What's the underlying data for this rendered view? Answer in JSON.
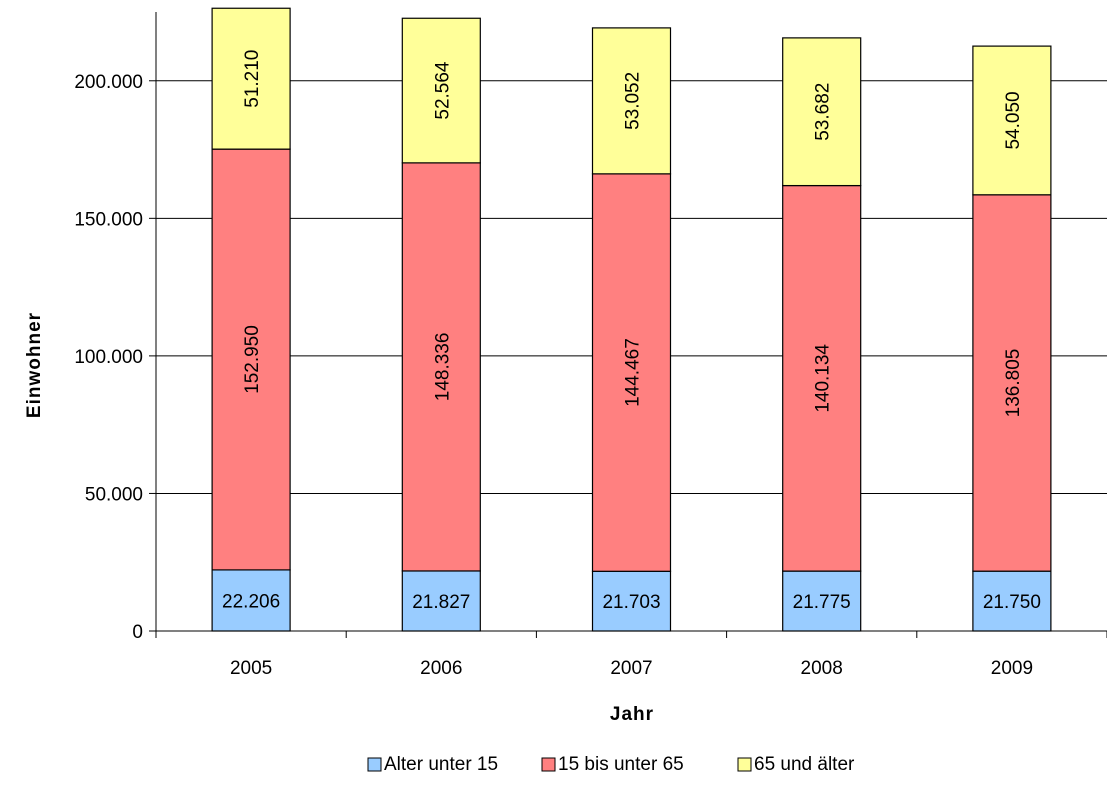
{
  "chart_data": {
    "type": "bar",
    "stacked": true,
    "title": "",
    "xlabel": "Jahr",
    "ylabel": "Einwohner",
    "ylim": [
      0,
      225000
    ],
    "yticks": [
      0,
      50000,
      100000,
      150000,
      200000
    ],
    "ytick_labels": [
      "0",
      "50.000",
      "100.000",
      "150.000",
      "200.000"
    ],
    "grid": true,
    "legend_position": "bottom",
    "categories": [
      "2005",
      "2006",
      "2007",
      "2008",
      "2009"
    ],
    "series": [
      {
        "name": "Alter unter 15",
        "color": "#99CCFF",
        "values": [
          22206,
          21827,
          21703,
          21775,
          21750
        ],
        "labels": [
          "22.206",
          "21.827",
          "21.703",
          "21.775",
          "21.750"
        ]
      },
      {
        "name": "15 bis unter 65",
        "color": "#FF8080",
        "values": [
          152950,
          148336,
          144467,
          140134,
          136805
        ],
        "labels": [
          "152.950",
          "148.336",
          "144.467",
          "140.134",
          "136.805"
        ]
      },
      {
        "name": "65 und älter",
        "color": "#FFFF99",
        "values": [
          51210,
          52564,
          53052,
          53682,
          54050
        ],
        "labels": [
          "51.210",
          "52.564",
          "53.052",
          "53.682",
          "54.050"
        ]
      }
    ]
  }
}
